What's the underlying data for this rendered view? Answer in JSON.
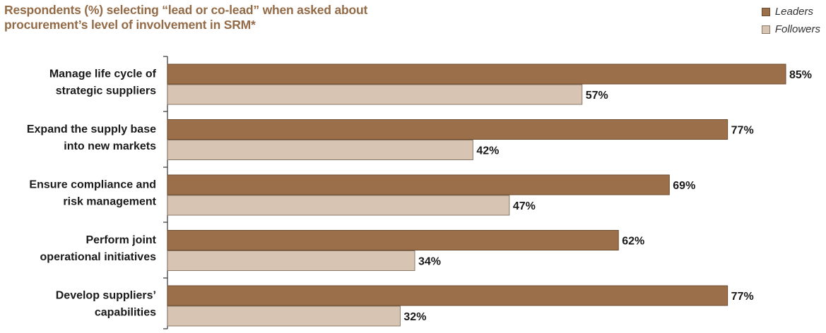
{
  "title": {
    "line1": "Respondents (%) selecting “lead or co-lead” when asked about",
    "line2": "procurement’s level of involvement in SRM*"
  },
  "legend": [
    {
      "label": "Leaders",
      "color": "#9b6f4a"
    },
    {
      "label": "Followers",
      "color": "#d8c4b2"
    }
  ],
  "chart_data": {
    "type": "bar",
    "orientation": "horizontal",
    "categories": [
      [
        "Manage life cycle of",
        "strategic suppliers"
      ],
      [
        "Expand the supply base",
        "into new markets"
      ],
      [
        "Ensure compliance and",
        "risk management"
      ],
      [
        "Perform joint",
        "operational initiatives"
      ],
      [
        "Develop suppliers’",
        "capabilities"
      ]
    ],
    "series": [
      {
        "name": "Leaders",
        "values": [
          85,
          77,
          69,
          62,
          77
        ],
        "labels": [
          "85%",
          "77%",
          "69%",
          "62%",
          "77%"
        ],
        "color": "#9b6f4a"
      },
      {
        "name": "Followers",
        "values": [
          57,
          42,
          47,
          34,
          32
        ],
        "labels": [
          "57%",
          "42%",
          "47%",
          "34%",
          "32%"
        ],
        "color": "#d8c4b2"
      }
    ],
    "xlim": [
      0,
      85
    ],
    "grid": false,
    "legend_position": "top-right"
  }
}
